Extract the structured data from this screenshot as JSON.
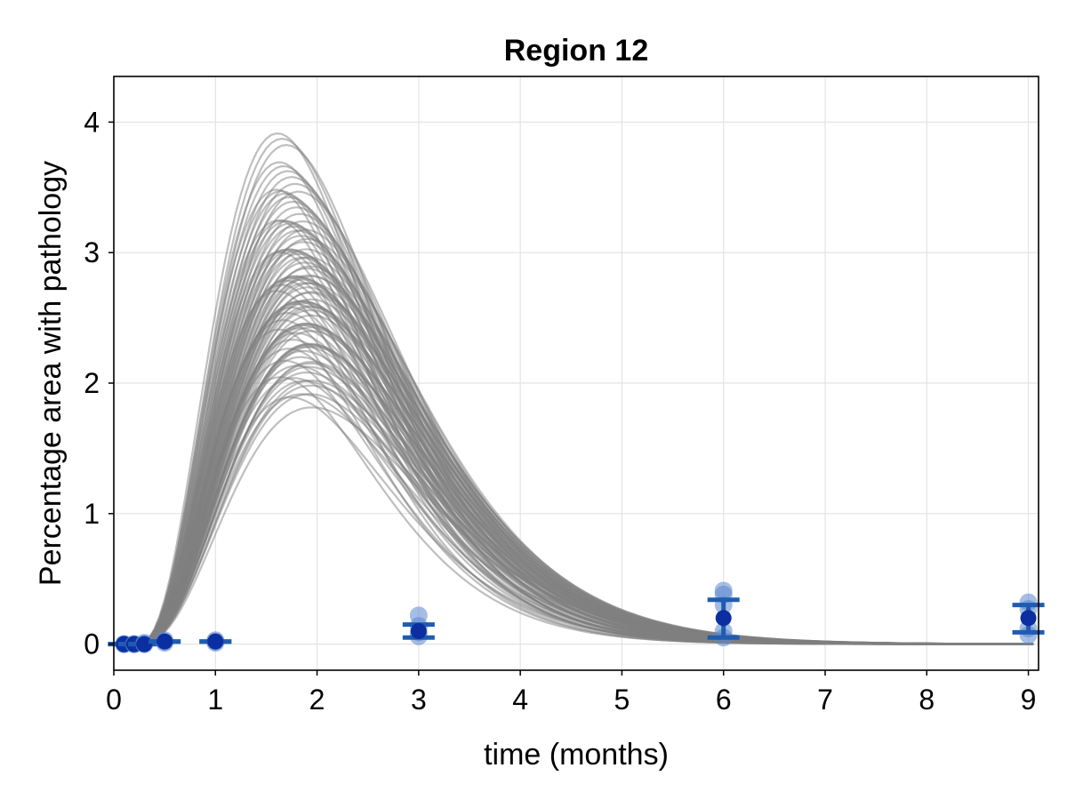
{
  "chart_data": {
    "type": "line",
    "title": "Region 12",
    "xlabel": "time (months)",
    "ylabel": "Percentage area with pathology",
    "xlim": [
      0,
      9.1
    ],
    "ylim": [
      -0.2,
      4.35
    ],
    "xticks": [
      0,
      1,
      2,
      3,
      4,
      5,
      6,
      7,
      8,
      9
    ],
    "yticks": [
      0,
      1,
      2,
      3,
      4
    ],
    "grid": true,
    "legend": "none",
    "colors": {
      "simulation": "#808080",
      "observation_points": "#5b86d0",
      "observation_mean": "#0b2fa0",
      "error_bars": "#1f5bb0"
    },
    "simulations": {
      "description_count": 100,
      "peak_x_range": [
        1.6,
        1.95
      ],
      "peak_y_range": [
        1.5,
        4.12
      ],
      "x": [
        0,
        0.25,
        0.5,
        0.75,
        1.0,
        1.25,
        1.5,
        1.75,
        2.0,
        2.25,
        2.5,
        2.75,
        3.0,
        3.5,
        4.0,
        4.5,
        5.0,
        6.0,
        7.0,
        8.0,
        9.0
      ],
      "example_series_y": [
        {
          "peak": 4.12,
          "values": [
            0,
            0.01,
            0.05,
            0.35,
            1.3,
            2.9,
            3.95,
            3.5,
            2.3,
            1.2,
            0.55,
            0.25,
            0.11,
            0.03,
            0.01,
            0,
            0,
            0,
            0,
            0,
            0
          ]
        },
        {
          "peak": 2.6,
          "values": [
            0,
            0.01,
            0.03,
            0.2,
            0.75,
            1.7,
            2.5,
            2.55,
            1.95,
            1.15,
            0.6,
            0.3,
            0.14,
            0.04,
            0.01,
            0,
            0,
            0,
            0,
            0,
            0
          ]
        },
        {
          "peak": 1.5,
          "values": [
            0,
            0.01,
            0.02,
            0.1,
            0.38,
            0.85,
            1.3,
            1.5,
            1.38,
            1.0,
            0.62,
            0.35,
            0.18,
            0.06,
            0.02,
            0.01,
            0,
            0,
            0,
            0,
            0
          ]
        }
      ]
    },
    "observations": [
      {
        "x": 0.1,
        "points": [
          0.0,
          0.0,
          0.0
        ],
        "mean": 0.0,
        "err_low": 0.0,
        "err_high": 0.0
      },
      {
        "x": 0.2,
        "points": [
          0.0,
          0.0,
          0.0
        ],
        "mean": 0.0,
        "err_low": 0.0,
        "err_high": 0.0
      },
      {
        "x": 0.3,
        "points": [
          0.0,
          0.01,
          0.0
        ],
        "mean": 0.0,
        "err_low": 0.0,
        "err_high": 0.0
      },
      {
        "x": 0.5,
        "points": [
          0.01,
          0.02,
          0.03
        ],
        "mean": 0.02,
        "err_low": 0.02,
        "err_high": 0.02
      },
      {
        "x": 1.0,
        "points": [
          0.01,
          0.02,
          0.03
        ],
        "mean": 0.02,
        "err_low": 0.02,
        "err_high": 0.02
      },
      {
        "x": 3.0,
        "points": [
          0.06,
          0.09,
          0.14,
          0.22
        ],
        "mean": 0.1,
        "err_low": 0.05,
        "err_high": 0.15
      },
      {
        "x": 6.0,
        "points": [
          0.05,
          0.1,
          0.3,
          0.38,
          0.41
        ],
        "mean": 0.2,
        "err_low": 0.05,
        "err_high": 0.34
      },
      {
        "x": 9.0,
        "points": [
          0.07,
          0.12,
          0.27,
          0.32
        ],
        "mean": 0.2,
        "err_low": 0.09,
        "err_high": 0.3
      }
    ]
  }
}
